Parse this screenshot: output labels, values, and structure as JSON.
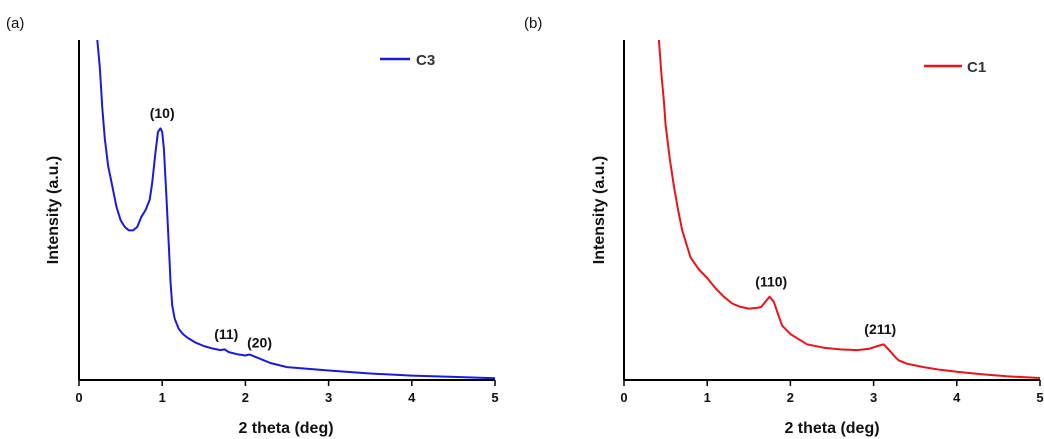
{
  "chart_data": [
    {
      "panel_label": "(a)",
      "type": "line",
      "xlabel": "2 theta (deg)",
      "ylabel": "Intensity (a.u.)",
      "xlim": [
        0,
        5
      ],
      "ylim": [
        0,
        10
      ],
      "xticks": [
        0,
        1,
        2,
        3,
        4,
        5
      ],
      "yticks_shown": false,
      "legend_position": "top-right",
      "series": [
        {
          "name": "C3",
          "color": "#1a1adf",
          "x": [
            0.22,
            0.25,
            0.28,
            0.31,
            0.35,
            0.4,
            0.45,
            0.5,
            0.55,
            0.6,
            0.65,
            0.7,
            0.75,
            0.8,
            0.85,
            0.88,
            0.92,
            0.95,
            0.98,
            1.0,
            1.02,
            1.05,
            1.08,
            1.1,
            1.12,
            1.15,
            1.2,
            1.25,
            1.3,
            1.4,
            1.5,
            1.6,
            1.7,
            1.75,
            1.8,
            1.9,
            2.0,
            2.05,
            2.1,
            2.2,
            2.3,
            2.5,
            3.0,
            3.5,
            4.0,
            4.5,
            5.0
          ],
          "y": [
            10.0,
            9.2,
            8.0,
            7.1,
            6.3,
            5.7,
            5.1,
            4.7,
            4.5,
            4.4,
            4.4,
            4.5,
            4.8,
            5.0,
            5.3,
            5.8,
            6.7,
            7.3,
            7.4,
            7.3,
            6.8,
            5.4,
            3.9,
            2.9,
            2.2,
            1.8,
            1.5,
            1.35,
            1.25,
            1.1,
            1.0,
            0.93,
            0.88,
            0.9,
            0.82,
            0.76,
            0.72,
            0.75,
            0.7,
            0.6,
            0.5,
            0.38,
            0.28,
            0.19,
            0.13,
            0.09,
            0.05
          ]
        }
      ],
      "annotations": [
        {
          "text": "(10)",
          "x": 1.0,
          "y": 7.7
        },
        {
          "text": "(11)",
          "x": 1.77,
          "y": 1.2
        },
        {
          "text": "(20)",
          "x": 2.17,
          "y": 0.95
        }
      ]
    },
    {
      "panel_label": "(b)",
      "type": "line",
      "xlabel": "2 theta (deg)",
      "ylabel": "Intensity (a.u.)",
      "xlim": [
        0,
        5
      ],
      "ylim": [
        0,
        10
      ],
      "xticks": [
        0,
        1,
        2,
        3,
        4,
        5
      ],
      "yticks_shown": false,
      "legend_position": "top-right",
      "series": [
        {
          "name": "C1",
          "color": "#e8141b",
          "x": [
            0.42,
            0.45,
            0.48,
            0.5,
            0.55,
            0.6,
            0.65,
            0.7,
            0.75,
            0.8,
            0.9,
            1.0,
            1.1,
            1.2,
            1.3,
            1.4,
            1.5,
            1.6,
            1.65,
            1.7,
            1.75,
            1.8,
            1.85,
            1.9,
            2.0,
            2.1,
            2.2,
            2.4,
            2.6,
            2.8,
            2.95,
            3.05,
            3.12,
            3.18,
            3.25,
            3.3,
            3.4,
            3.6,
            3.8,
            4.0,
            4.3,
            4.6,
            5.0
          ],
          "y": [
            10.0,
            9.0,
            8.2,
            7.5,
            6.5,
            5.7,
            5.0,
            4.4,
            4.0,
            3.6,
            3.25,
            3.0,
            2.7,
            2.45,
            2.25,
            2.15,
            2.1,
            2.12,
            2.15,
            2.3,
            2.45,
            2.3,
            1.95,
            1.6,
            1.35,
            1.2,
            1.05,
            0.95,
            0.9,
            0.88,
            0.92,
            1.0,
            1.05,
            0.9,
            0.7,
            0.58,
            0.48,
            0.38,
            0.3,
            0.24,
            0.17,
            0.11,
            0.06
          ]
        }
      ],
      "annotations": [
        {
          "text": "(110)",
          "x": 1.77,
          "y": 2.75
        },
        {
          "text": "(211)",
          "x": 3.08,
          "y": 1.35
        }
      ]
    }
  ]
}
